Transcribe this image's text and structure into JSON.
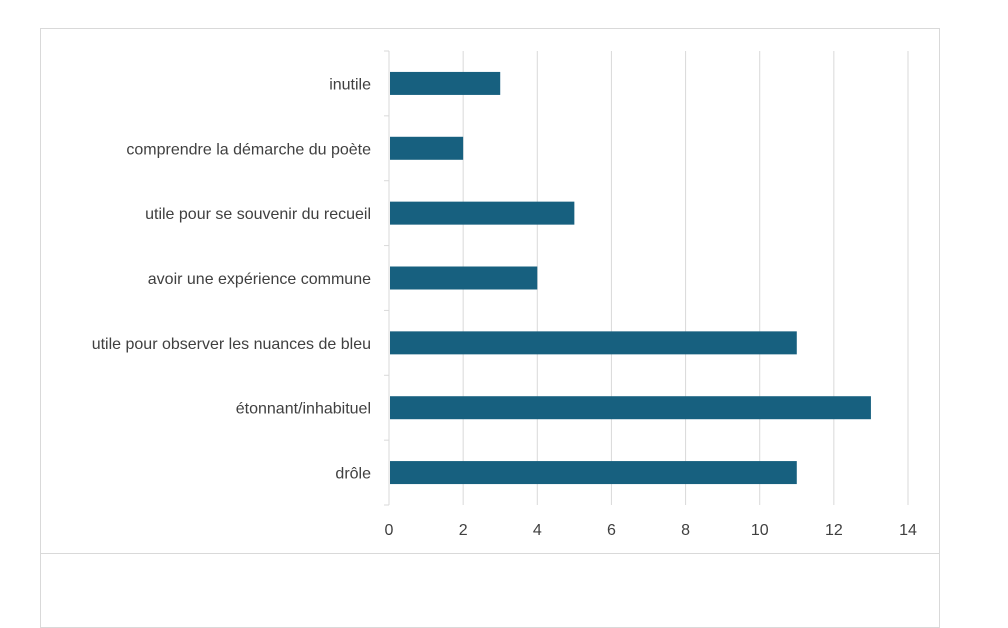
{
  "chart_data": {
    "type": "bar",
    "orientation": "horizontal",
    "categories": [
      "inutile",
      "comprendre la démarche du poète",
      "utile pour se souvenir du recueil",
      "avoir une expérience commune",
      "utile pour observer les nuances de bleu",
      "étonnant/inhabituel",
      "drôle"
    ],
    "series": [
      {
        "values": [
          3,
          2,
          5,
          4,
          11,
          13,
          11
        ]
      }
    ],
    "xlim": [
      0,
      14
    ],
    "xticks": [
      0,
      2,
      4,
      6,
      8,
      10,
      12,
      14
    ],
    "grid": true,
    "bar_color": "#17607F",
    "grid_color": "#d9d9d9"
  }
}
